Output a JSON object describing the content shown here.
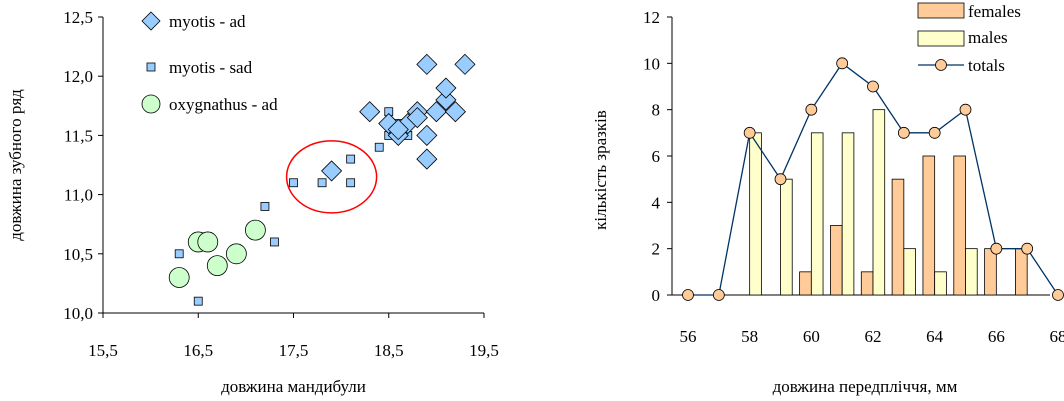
{
  "chart_data": [
    {
      "type": "scatter",
      "xlabel": "довжина мандибули",
      "ylabel": "довжина зубного ряд",
      "xlim": [
        15.5,
        19.5
      ],
      "ylim": [
        10.0,
        12.5
      ],
      "x_ticks": [
        "15,5",
        "16,5",
        "17,5",
        "18,5",
        "19,5"
      ],
      "y_ticks": [
        "10,0",
        "10,5",
        "11,0",
        "11,5",
        "12,0",
        "12,5"
      ],
      "legend_position": "top-left",
      "series": [
        {
          "name": "myotis - ad",
          "color": "#99CCFF",
          "marker": "diamond",
          "points": [
            [
              17.9,
              11.2
            ],
            [
              18.3,
              11.7
            ],
            [
              18.5,
              11.6
            ],
            [
              18.6,
              11.5
            ],
            [
              18.7,
              11.6
            ],
            [
              18.8,
              11.7
            ],
            [
              18.9,
              11.5
            ],
            [
              18.9,
              11.3
            ],
            [
              18.9,
              12.1
            ],
            [
              19.0,
              11.7
            ],
            [
              19.1,
              11.8
            ],
            [
              19.1,
              11.9
            ],
            [
              19.2,
              11.7
            ],
            [
              19.3,
              12.1
            ],
            [
              18.6,
              11.55
            ],
            [
              18.8,
              11.65
            ]
          ]
        },
        {
          "name": "myotis - sad",
          "color": "#99CCFF",
          "marker": "square",
          "points": [
            [
              16.3,
              10.5
            ],
            [
              16.5,
              10.1
            ],
            [
              17.2,
              10.9
            ],
            [
              17.3,
              10.6
            ],
            [
              17.5,
              11.1
            ],
            [
              17.8,
              11.1
            ],
            [
              18.1,
              11.1
            ],
            [
              18.1,
              11.3
            ],
            [
              18.4,
              11.4
            ],
            [
              18.5,
              11.5
            ],
            [
              18.5,
              11.7
            ],
            [
              18.7,
              11.5
            ],
            [
              18.6,
              11.6
            ]
          ]
        },
        {
          "name": "oxygnathus - ad",
          "color": "#CCFFCC",
          "marker": "circle",
          "points": [
            [
              16.3,
              10.3
            ],
            [
              16.5,
              10.6
            ],
            [
              16.6,
              10.6
            ],
            [
              16.7,
              10.4
            ],
            [
              16.9,
              10.5
            ],
            [
              17.1,
              10.7
            ]
          ]
        }
      ],
      "annotation": {
        "type": "ellipse",
        "color": "#FF0000",
        "center": [
          17.9,
          11.15
        ]
      }
    },
    {
      "type": "bar",
      "xlabel": "довжина передпліччя, мм",
      "ylabel": "кількість зразків",
      "xlim": [
        56,
        68
      ],
      "ylim": [
        0,
        12
      ],
      "x_ticks": [
        "56",
        "58",
        "60",
        "62",
        "64",
        "66",
        "68"
      ],
      "y_ticks": [
        "0",
        "2",
        "4",
        "6",
        "8",
        "10",
        "12"
      ],
      "legend_position": "top-right",
      "categories": [
        56,
        57,
        58,
        59,
        60,
        61,
        62,
        63,
        64,
        65,
        66,
        67,
        68
      ],
      "series": [
        {
          "name": "females",
          "color": "#FFCC99",
          "values": [
            0,
            0,
            0,
            0,
            1,
            3,
            1,
            5,
            6,
            6,
            2,
            2,
            0
          ]
        },
        {
          "name": "males",
          "color": "#FFFFCC",
          "values": [
            0,
            0,
            7,
            5,
            7,
            7,
            8,
            2,
            1,
            2,
            0,
            0,
            0
          ]
        },
        {
          "name": "totals",
          "color": "#003366",
          "marker_color": "#FFCC99",
          "type": "line",
          "values": [
            0,
            0,
            7,
            5,
            8,
            10,
            9,
            7,
            7,
            8,
            2,
            2,
            0
          ]
        }
      ]
    }
  ]
}
